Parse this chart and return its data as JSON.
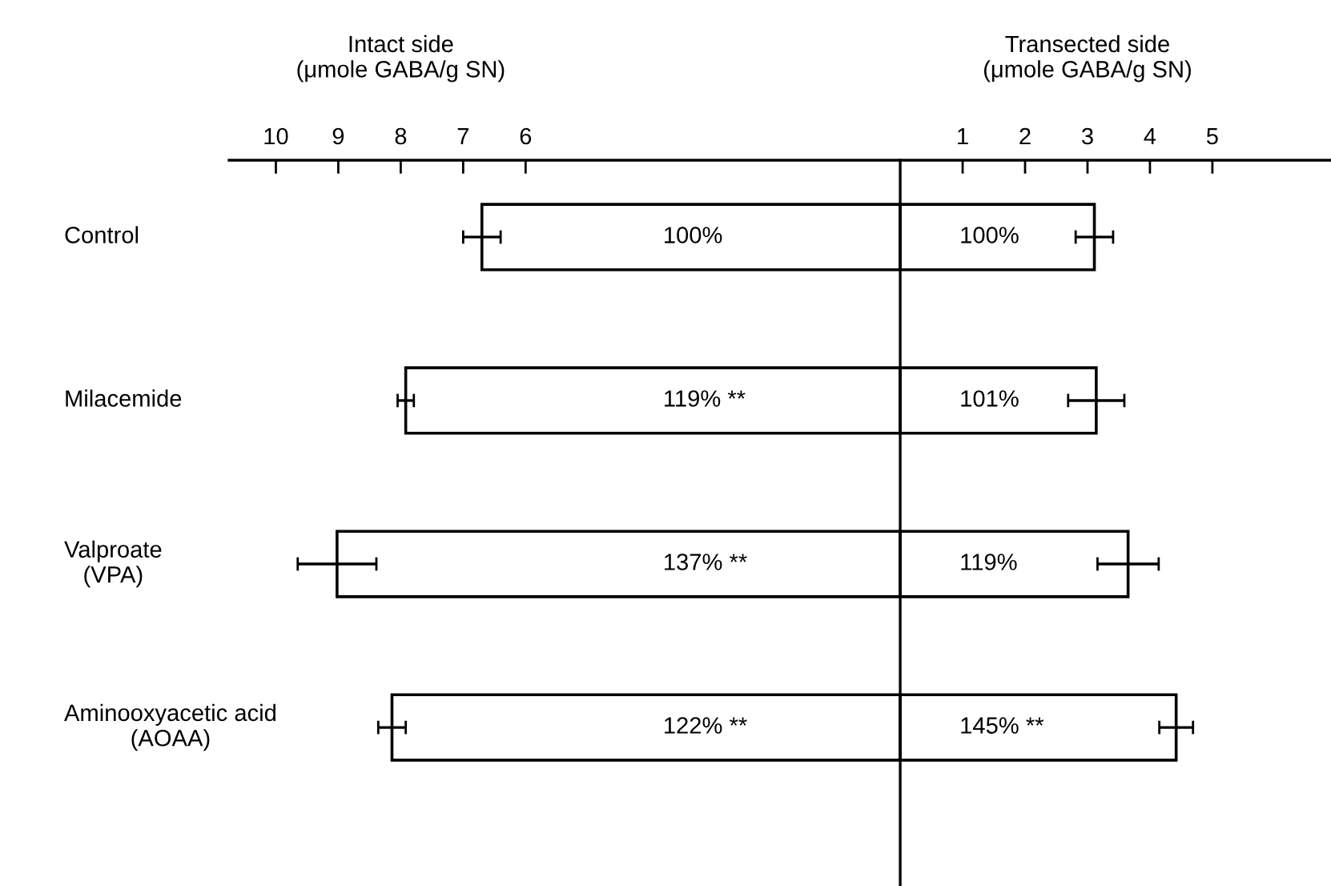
{
  "chart_data": {
    "type": "bar",
    "orientation": "horizontal",
    "categories": [
      "Control",
      "Milacemide",
      "Valproate\n(VPA)",
      "Aminooxyacetic acid\n(AOAA)"
    ],
    "series": [
      {
        "color": "#ffffff",
        "values": [
          -6.7,
          -7.92,
          -9.02,
          -8.14
        ],
        "errors": [
          0.3,
          0.13,
          0.63,
          0.22
        ]
      },
      {
        "color": "#ffffff",
        "values": [
          3.11,
          3.14,
          3.65,
          4.42
        ],
        "errors": [
          0.3,
          0.45,
          0.49,
          0.27
        ]
      }
    ],
    "xlim": [
      -10.75,
      6.9
    ],
    "xticks": [
      {
        "value": -10,
        "label": "10"
      },
      {
        "value": -9,
        "label": "9"
      },
      {
        "value": -8,
        "label": "8"
      },
      {
        "value": -7,
        "label": "7"
      },
      {
        "value": -6,
        "label": "6"
      },
      1,
      2,
      3,
      4,
      5
    ],
    "annotations": [
      "Intact side\n(μmole GABA/g SN)",
      "Transected side\n(μmole GABA/g SN)",
      "100%",
      "119% **",
      "137% **",
      "122% **",
      "100%",
      "101%",
      "119%",
      "145% **"
    ],
    "stacked": true,
    "grid": false
  }
}
